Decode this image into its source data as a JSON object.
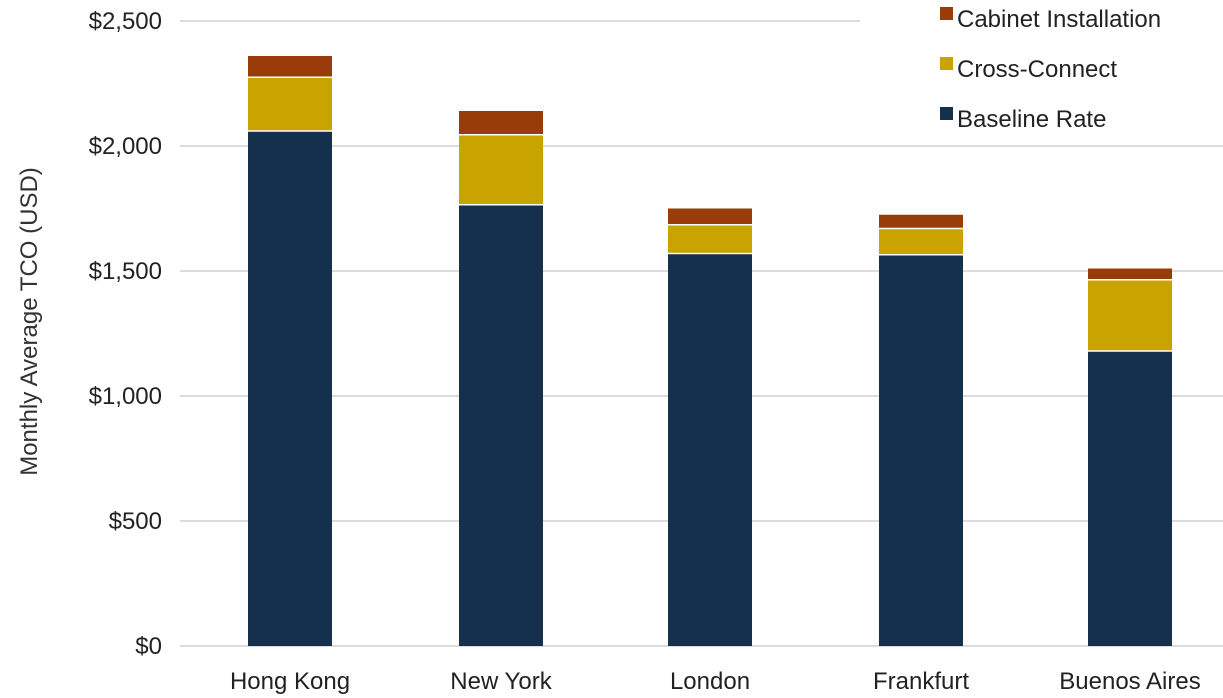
{
  "chart_data": {
    "type": "bar",
    "stacked": true,
    "categories": [
      "Hong Kong",
      "New York",
      "London",
      "Frankfurt",
      "Buenos Aires"
    ],
    "series": [
      {
        "name": "Baseline Rate",
        "color": "#14304d",
        "values": [
          2060,
          1765,
          1570,
          1565,
          1180
        ]
      },
      {
        "name": "Cross-Connect",
        "color": "#c9a300",
        "values": [
          215,
          280,
          115,
          105,
          285
        ]
      },
      {
        "name": "Cabinet Installation",
        "color": "#9a3c0a",
        "values": [
          85,
          95,
          65,
          55,
          45
        ]
      }
    ],
    "title": "",
    "xlabel": "",
    "ylabel": "Monthly Average TCO (USD)",
    "ylim": [
      0,
      2500
    ],
    "yticks": [
      "$0",
      "$500",
      "$1,000",
      "$1,500",
      "$2,000",
      "$2,500"
    ],
    "ytick_values": [
      0,
      500,
      1000,
      1500,
      2000,
      2500
    ],
    "grid": true,
    "legend_placement": "top-right",
    "legend_order": [
      "Cabinet Installation",
      "Cross-Connect",
      "Baseline Rate"
    ]
  }
}
